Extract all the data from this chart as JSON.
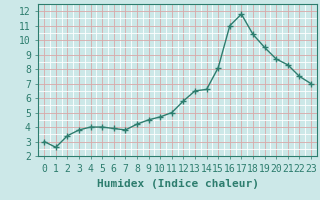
{
  "x": [
    0,
    1,
    2,
    3,
    4,
    5,
    6,
    7,
    8,
    9,
    10,
    11,
    12,
    13,
    14,
    15,
    16,
    17,
    18,
    19,
    20,
    21,
    22,
    23
  ],
  "y": [
    3.0,
    2.6,
    3.4,
    3.8,
    4.0,
    4.0,
    3.9,
    3.8,
    4.2,
    4.5,
    4.7,
    5.0,
    5.8,
    6.5,
    6.6,
    8.1,
    11.0,
    11.8,
    10.4,
    9.5,
    8.7,
    8.3,
    7.5,
    7.0
  ],
  "line_color": "#2d7d6e",
  "marker": "+",
  "marker_size": 4,
  "marker_lw": 1.0,
  "bg_color": "#cce8e8",
  "grid_major_color": "#d8a8a8",
  "grid_minor_color": "#ffffff",
  "xlabel": "Humidex (Indice chaleur)",
  "xlabel_fontsize": 8,
  "ylabel_ticks": [
    2,
    3,
    4,
    5,
    6,
    7,
    8,
    9,
    10,
    11,
    12
  ],
  "xlim": [
    -0.5,
    23.5
  ],
  "ylim": [
    2.0,
    12.5
  ],
  "tick_fontsize": 7
}
